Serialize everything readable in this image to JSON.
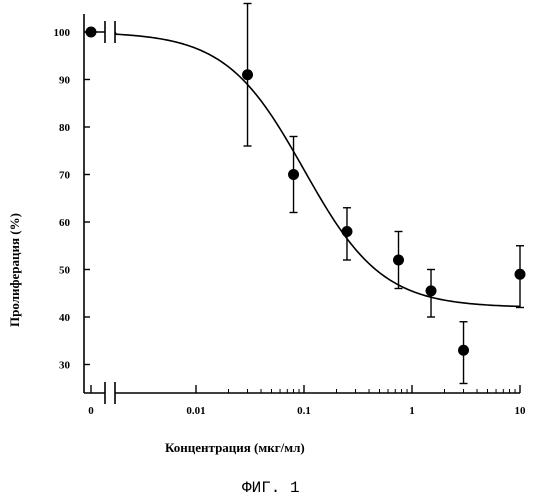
{
  "chart_data": {
    "type": "scatter",
    "xlabel": "Концентрация (мкг/мл)",
    "ylabel": "Пролиферация (%)",
    "caption": "ФИГ. 1",
    "x_scale": "log",
    "x_ticks": [
      {
        "value": 0,
        "label": "0"
      },
      {
        "value": 0.01,
        "label": "0.01"
      },
      {
        "value": 0.1,
        "label": "0.1"
      },
      {
        "value": 1,
        "label": "1"
      },
      {
        "value": 10,
        "label": "10"
      }
    ],
    "y_ticks": [
      {
        "value": 30,
        "label": "30"
      },
      {
        "value": 40,
        "label": "40"
      },
      {
        "value": 50,
        "label": "50"
      },
      {
        "value": 60,
        "label": "60"
      },
      {
        "value": 70,
        "label": "70"
      },
      {
        "value": 80,
        "label": "80"
      },
      {
        "value": 90,
        "label": "90"
      },
      {
        "value": 100,
        "label": "100"
      }
    ],
    "ylim": [
      25,
      106
    ],
    "axis_breaks": "x-axis and y=100 gridline broken near 0",
    "points": [
      {
        "x": 0,
        "y": 100
      },
      {
        "x": 0.03,
        "y": 91,
        "err_low": 76,
        "err_high": 106
      },
      {
        "x": 0.08,
        "y": 70,
        "err_low": 62,
        "err_high": 78
      },
      {
        "x": 0.25,
        "y": 58,
        "err_low": 52,
        "err_high": 63
      },
      {
        "x": 0.75,
        "y": 52,
        "err_low": 46,
        "err_high": 58
      },
      {
        "x": 1.5,
        "y": 45.5,
        "err_low": 40,
        "err_high": 50
      },
      {
        "x": 3,
        "y": 33,
        "err_low": 26,
        "err_high": 39
      },
      {
        "x": 10,
        "y": 49,
        "err_low": 42,
        "err_high": 55
      }
    ],
    "fit_curve": {
      "top": 100,
      "bottom": 42,
      "ec50": 0.1,
      "hill": 1.2,
      "x_range": [
        0.001,
        10
      ]
    }
  }
}
